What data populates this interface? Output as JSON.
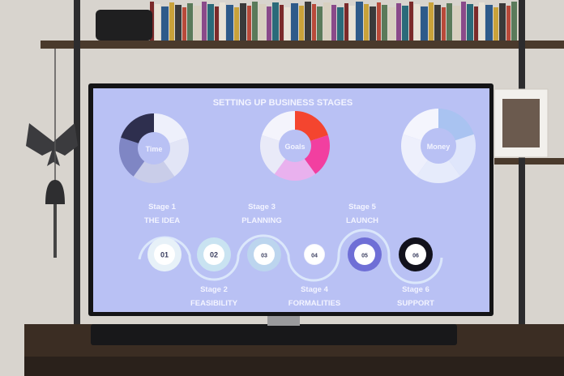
{
  "screen": {
    "title": "SETTING UP BUSINESS STAGES",
    "background": "#b9c1f4",
    "donuts": [
      {
        "label": "Time",
        "colors": [
          "#eef0fb",
          "#e2e5f6",
          "#c9cde9",
          "#7f86c4",
          "#2e2f4e"
        ]
      },
      {
        "label": "Goals",
        "colors": [
          "#f4452f",
          "#f23fa0",
          "#e9b1ee",
          "#e9eaf8",
          "#f4f4fc"
        ]
      },
      {
        "label": "Money",
        "colors": [
          "#a9c3f1",
          "#dfe6fb",
          "#e6ebfb",
          "#eef0fc",
          "#f4f5fd"
        ]
      }
    ],
    "stages": [
      {
        "number": "01",
        "stage": "Stage 1",
        "name": "THE IDEA",
        "ring": "#e7f1f8"
      },
      {
        "number": "02",
        "stage": "Stage 2",
        "name": "FEASIBILITY",
        "ring": "#c9e3f1"
      },
      {
        "number": "03",
        "stage": "Stage 3",
        "name": "PLANNING",
        "ring": "#bcd5ee"
      },
      {
        "number": "04",
        "stage": "Stage 4",
        "name": "FORMALITIES",
        "ring": "#f4f5fc"
      },
      {
        "number": "05",
        "stage": "Stage 5",
        "name": "LAUNCH",
        "ring": "#6f6fd6"
      },
      {
        "number": "06",
        "stage": "Stage 6",
        "name": "SUPPORT",
        "ring": "#12121c"
      }
    ]
  }
}
